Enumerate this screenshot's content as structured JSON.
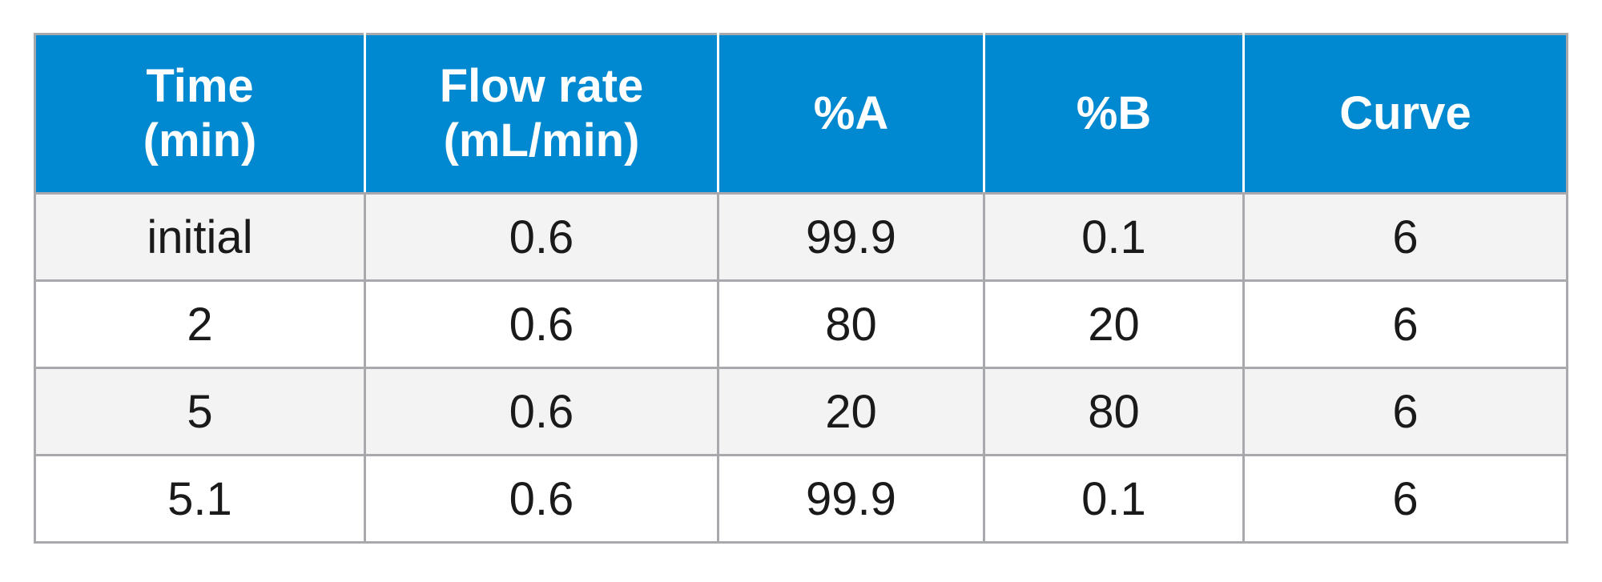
{
  "table": {
    "headers": [
      {
        "line1": "Time",
        "line2": "(min)"
      },
      {
        "line1": "Flow rate",
        "line2": "(mL/min)"
      },
      {
        "line1": "%A",
        "line2": ""
      },
      {
        "line1": "%B",
        "line2": ""
      },
      {
        "line1": "Curve",
        "line2": ""
      }
    ],
    "rows": [
      [
        "initial",
        "0.6",
        "99.9",
        "0.1",
        "6"
      ],
      [
        "2",
        "0.6",
        "80",
        "20",
        "6"
      ],
      [
        "5",
        "0.6",
        "20",
        "80",
        "6"
      ],
      [
        "5.1",
        "0.6",
        "99.9",
        "0.1",
        "6"
      ]
    ],
    "colors": {
      "header_bg": "#0089d0",
      "header_text": "#ffffff",
      "row_shade": "#f3f3f4",
      "border": "#a7a9ac"
    }
  }
}
